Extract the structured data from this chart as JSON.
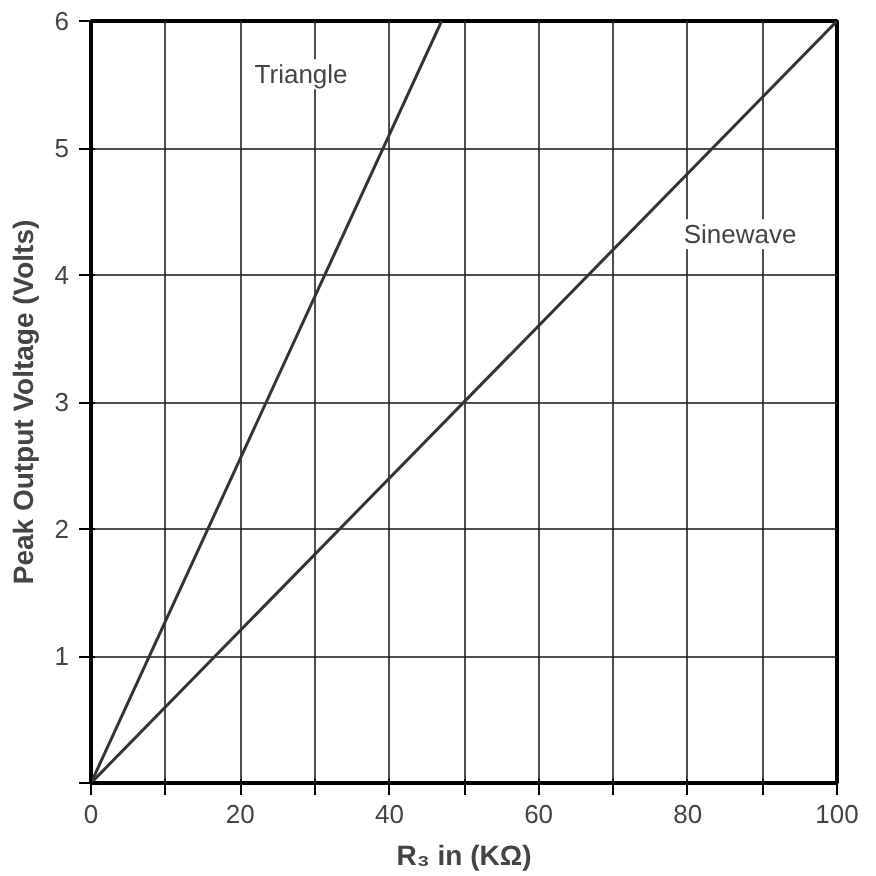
{
  "chart_data": {
    "type": "line",
    "xlabel": "R₃ in (KΩ)",
    "ylabel": "Peak Output Voltage (Volts)",
    "xlim": [
      0,
      100
    ],
    "ylim": [
      0,
      6
    ],
    "xticks": [
      0,
      {
        "value": 10,
        "label": null
      },
      20,
      {
        "value": 30,
        "label": null
      },
      40,
      {
        "value": 50,
        "label": null
      },
      60,
      {
        "value": 70,
        "label": null
      },
      80,
      {
        "value": 90,
        "label": null
      },
      100
    ],
    "yticks": [
      {
        "value": 0,
        "label": null
      },
      1,
      2,
      3,
      4,
      5,
      6
    ],
    "grid": true,
    "marker": "none",
    "line_style": "solid",
    "series": [
      {
        "name": "Triangle",
        "color": "#333333",
        "x": [
          0,
          47
        ],
        "values": [
          0,
          6
        ]
      },
      {
        "name": "Sinewave",
        "color": "#333333",
        "x": [
          0,
          100
        ],
        "values": [
          0,
          6
        ]
      }
    ]
  }
}
